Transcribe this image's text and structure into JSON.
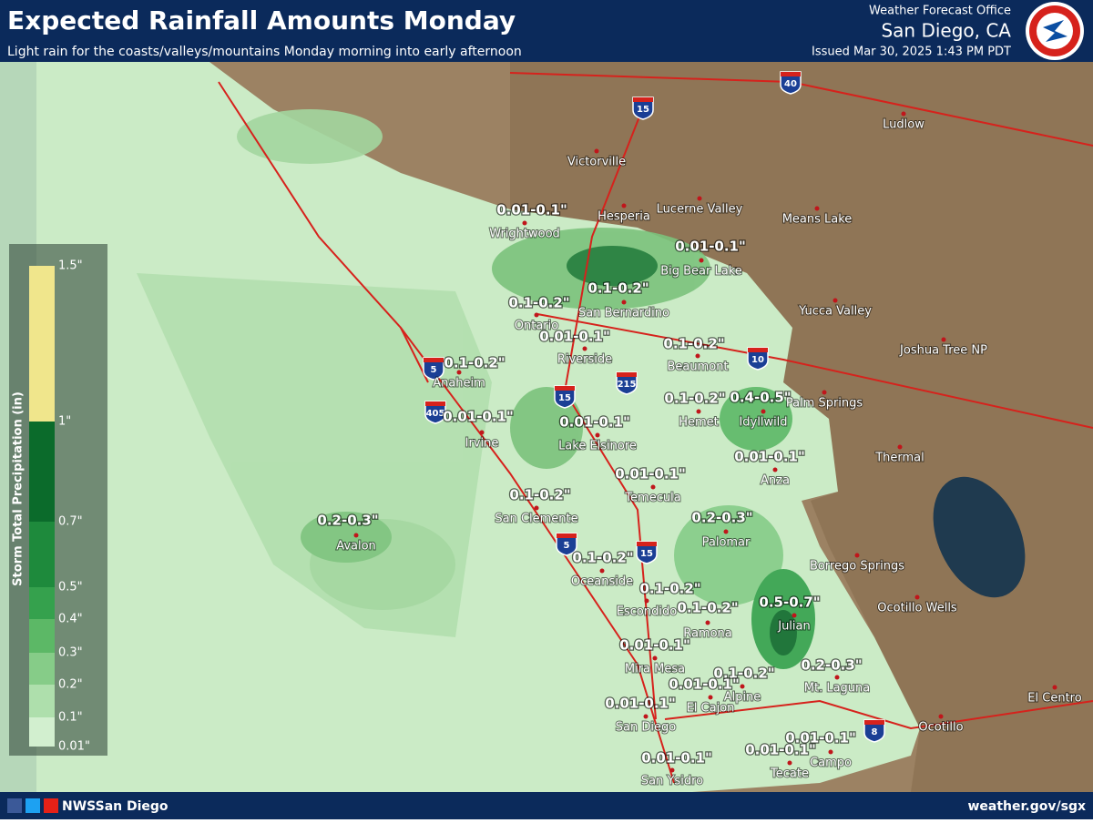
{
  "header": {
    "title": "Expected Rainfall Amounts Monday",
    "subtitle": "Light rain for the coasts/valleys/mountains Monday morning into early afternoon",
    "office": "Weather Forecast Office",
    "location": "San Diego, CA",
    "issued": "Issued Mar 30, 2025 1:43 PM PDT"
  },
  "legend": {
    "title": "Storm Total Precipitation (in)",
    "labels": [
      "1.5\"",
      "1\"",
      "0.7\"",
      "0.5\"",
      "0.4\"",
      "0.3\"",
      "0.2\"",
      "0.1\"",
      "0.01\""
    ]
  },
  "cities": [
    "Victorville",
    "Hesperia",
    "Lucerne Valley",
    "Means Lake",
    "Ludlow",
    "Wrightwood",
    "Big Bear Lake",
    "Yucca Valley",
    "Ontario",
    "San Bernardino",
    "Riverside",
    "Beaumont",
    "Joshua Tree NP",
    "Anaheim",
    "Palm Springs",
    "Hemet",
    "Idyllwild",
    "Irvine",
    "Lake Elsinore",
    "Thermal",
    "Anza",
    "Temecula",
    "San Clemente",
    "Avalon",
    "Palomar",
    "Borrego Springs",
    "Oceanside",
    "Escondido",
    "Ramona",
    "Julian",
    "Ocotillo Wells",
    "Mira Mesa",
    "Mt. Laguna",
    "Alpine",
    "El Cajon",
    "El Centro",
    "San Diego",
    "Ocotillo",
    "Campo",
    "Tecate",
    "San Ysidro"
  ],
  "amounts": [
    "0.01-0.1\"",
    "0.1-0.2\"",
    "0.1-0.2\"",
    "0.01-0.1\"",
    "0.01-0.1\"",
    "0.1-0.2\"",
    "0.1-0.2\"",
    "0.1-0.2\"",
    "0.4-0.5\"",
    "0.01-0.1\"",
    "0.01-0.1\"",
    "0.01-0.1\"",
    "0.01-0.1\"",
    "0.1-0.2\"",
    "0.2-0.3\"",
    "0.2-0.3\"",
    "0.1-0.2\"",
    "0.1-0.2\"",
    "0.1-0.2\"",
    "0.5-0.7\"",
    "0.01-0.1\"",
    "0.2-0.3\"",
    "0.1-0.2\"",
    "0.01-0.1\"",
    "0.01-0.1\"",
    "0.01-0.1\"",
    "0.01-0.1\"",
    "0.01-0.1\""
  ],
  "highways": [
    "40",
    "15",
    "10",
    "5",
    "215",
    "15",
    "405",
    "5",
    "15",
    "8"
  ],
  "footer": {
    "handle": "NWSSan Diego",
    "url": "weather.gov/sgx"
  }
}
